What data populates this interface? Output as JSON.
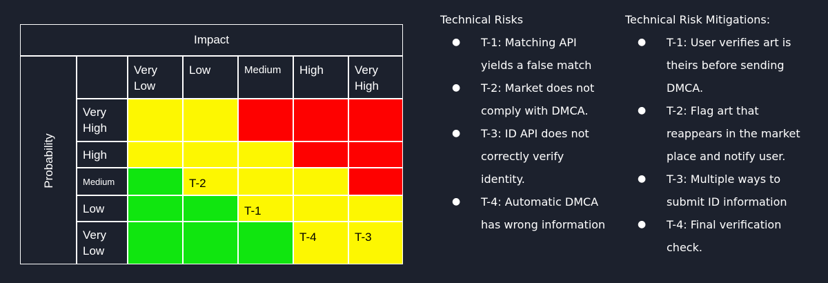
{
  "matrix": {
    "impact_label": "Impact",
    "probability_label": "Probability",
    "impact_levels": [
      "Very\nLow",
      "Low",
      "Medium",
      "High",
      "Very\nHigh"
    ],
    "probability_levels": [
      "Very\nHigh",
      "High",
      "Medium",
      "Low",
      "Very\nLow"
    ],
    "rating_colors": {
      "low": "#10e60f",
      "medium": "#fdf701",
      "high": "#fe0100"
    },
    "grid": [
      [
        {
          "rating": "medium",
          "label": ""
        },
        {
          "rating": "medium",
          "label": ""
        },
        {
          "rating": "high",
          "label": ""
        },
        {
          "rating": "high",
          "label": ""
        },
        {
          "rating": "high",
          "label": ""
        }
      ],
      [
        {
          "rating": "medium",
          "label": ""
        },
        {
          "rating": "medium",
          "label": ""
        },
        {
          "rating": "medium",
          "label": ""
        },
        {
          "rating": "high",
          "label": ""
        },
        {
          "rating": "high",
          "label": ""
        }
      ],
      [
        {
          "rating": "low",
          "label": ""
        },
        {
          "rating": "medium",
          "label": "T-2"
        },
        {
          "rating": "medium",
          "label": ""
        },
        {
          "rating": "medium",
          "label": ""
        },
        {
          "rating": "high",
          "label": ""
        }
      ],
      [
        {
          "rating": "low",
          "label": ""
        },
        {
          "rating": "low",
          "label": ""
        },
        {
          "rating": "medium",
          "label": "T-1"
        },
        {
          "rating": "medium",
          "label": ""
        },
        {
          "rating": "medium",
          "label": ""
        }
      ],
      [
        {
          "rating": "low",
          "label": ""
        },
        {
          "rating": "low",
          "label": ""
        },
        {
          "rating": "low",
          "label": ""
        },
        {
          "rating": "medium",
          "label": "T-4"
        },
        {
          "rating": "medium",
          "label": "T-3"
        }
      ]
    ]
  },
  "technical_risks": {
    "title": "Technical Risks",
    "items": [
      "T-1: Matching API yields a false match",
      "T-2: Market does not comply with DMCA.",
      "T-3: ID API does not correctly verify identity.",
      "T-4: Automatic DMCA has wrong information"
    ]
  },
  "mitigations": {
    "title": "Technical Risk Mitigations:",
    "items": [
      "T-1: User verifies art is theirs before sending DMCA.",
      "T-2: Flag art that reappears in the market place and notify user.",
      "T-3: Multiple ways to submit ID information",
      "T-4: Final verification check."
    ]
  },
  "bullet_glyph": "●"
}
